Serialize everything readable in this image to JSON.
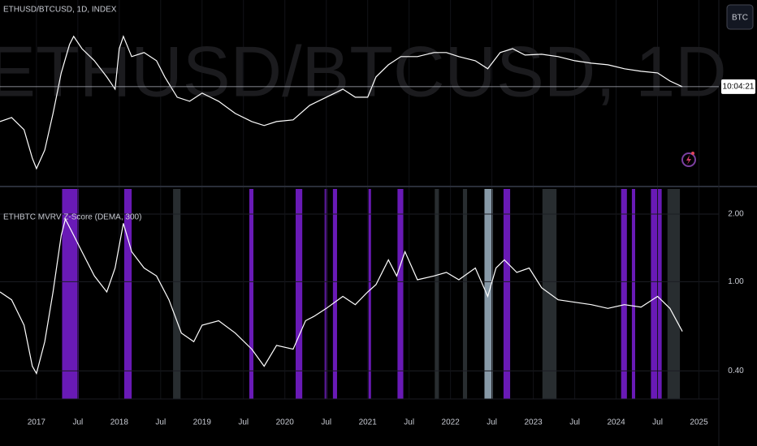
{
  "header": {
    "button": "BTC"
  },
  "chart_data": [
    {
      "type": "line",
      "title": "ETHUSD/BTCUSD, 1D, INDEX",
      "watermark": "ETHUSD/BTCUSD, 1D",
      "price_label": "10:04:21",
      "log_scale": true,
      "color": "#ffffff",
      "xlim": [
        2016.56,
        2025.24
      ],
      "ylim": [
        0.0062,
        0.33
      ],
      "x": [
        2016.56,
        2016.7,
        2016.85,
        2016.95,
        2017.0,
        2017.1,
        2017.2,
        2017.3,
        2017.4,
        2017.45,
        2017.55,
        2017.7,
        2017.85,
        2017.95,
        2018.0,
        2018.05,
        2018.15,
        2018.3,
        2018.45,
        2018.55,
        2018.7,
        2018.85,
        2019.0,
        2019.2,
        2019.4,
        2019.6,
        2019.75,
        2019.9,
        2020.1,
        2020.3,
        2020.5,
        2020.7,
        2020.85,
        2021.0,
        2021.1,
        2021.25,
        2021.4,
        2021.6,
        2021.8,
        2021.95,
        2022.1,
        2022.3,
        2022.45,
        2022.6,
        2022.75,
        2022.9,
        2023.1,
        2023.3,
        2023.5,
        2023.7,
        2023.9,
        2024.1,
        2024.3,
        2024.5,
        2024.65,
        2024.8
      ],
      "values": [
        0.0242,
        0.0264,
        0.0203,
        0.011,
        0.0088,
        0.0131,
        0.0288,
        0.0689,
        0.1268,
        0.151,
        0.116,
        0.0895,
        0.0631,
        0.0486,
        0.116,
        0.151,
        0.0977,
        0.1066,
        0.0895,
        0.0631,
        0.0408,
        0.0374,
        0.0446,
        0.0374,
        0.0288,
        0.0242,
        0.0222,
        0.0242,
        0.0251,
        0.0343,
        0.0408,
        0.0486,
        0.0408,
        0.0408,
        0.0631,
        0.082,
        0.0977,
        0.0977,
        0.1066,
        0.1066,
        0.0977,
        0.0895,
        0.0752,
        0.1066,
        0.116,
        0.1011,
        0.1028,
        0.0977,
        0.0895,
        0.0849,
        0.082,
        0.0752,
        0.0713,
        0.0689,
        0.0578,
        0.0512
      ]
    },
    {
      "type": "line",
      "title": "ETHBTC MVRV Z-Score (DEMA, 300)",
      "log_scale": true,
      "grid": true,
      "color": "#ffffff",
      "xlim": [
        2016.56,
        2025.24
      ],
      "ylim": [
        0.3,
        2.59
      ],
      "yticks": [
        {
          "value": 0.4,
          "label": "0.40"
        },
        {
          "value": 1,
          "label": "1.00"
        },
        {
          "value": 2,
          "label": "2.00"
        }
      ],
      "xticks": [
        2017,
        {
          "value": 2017.5,
          "label": "Jul"
        },
        2018,
        {
          "value": 2018.5,
          "label": "Jul"
        },
        2019,
        {
          "value": 2019.5,
          "label": "Jul"
        },
        2020,
        {
          "value": 2020.5,
          "label": "Jul"
        },
        2021,
        {
          "value": 2021.5,
          "label": "Jul"
        },
        2022,
        {
          "value": 2022.5,
          "label": "Jul"
        },
        2023,
        {
          "value": 2023.5,
          "label": "Jul"
        },
        2024,
        {
          "value": 2024.5,
          "label": "Jul"
        },
        2025
      ],
      "x": [
        2016.56,
        2016.7,
        2016.85,
        2016.95,
        2017.0,
        2017.1,
        2017.2,
        2017.3,
        2017.35,
        2017.45,
        2017.55,
        2017.7,
        2017.85,
        2017.95,
        2018.05,
        2018.15,
        2018.3,
        2018.45,
        2018.6,
        2018.75,
        2018.9,
        2019.0,
        2019.2,
        2019.4,
        2019.6,
        2019.75,
        2019.9,
        2020.1,
        2020.25,
        2020.35,
        2020.5,
        2020.7,
        2020.85,
        2021.0,
        2021.1,
        2021.25,
        2021.35,
        2021.45,
        2021.6,
        2021.8,
        2021.95,
        2022.1,
        2022.3,
        2022.45,
        2022.55,
        2022.65,
        2022.8,
        2022.95,
        2023.1,
        2023.3,
        2023.5,
        2023.7,
        2023.9,
        2024.1,
        2024.3,
        2024.5,
        2024.65,
        2024.8
      ],
      "values": [
        0.9,
        0.83,
        0.64,
        0.42,
        0.39,
        0.54,
        0.9,
        1.61,
        1.9,
        1.61,
        1.36,
        1.06,
        0.9,
        1.15,
        1.82,
        1.36,
        1.15,
        1.06,
        0.83,
        0.59,
        0.54,
        0.64,
        0.67,
        0.59,
        0.5,
        0.42,
        0.52,
        0.5,
        0.67,
        0.7,
        0.76,
        0.86,
        0.79,
        0.9,
        0.97,
        1.25,
        1.06,
        1.36,
        1.02,
        1.06,
        1.1,
        1.02,
        1.15,
        0.86,
        1.15,
        1.25,
        1.1,
        1.15,
        0.94,
        0.83,
        0.81,
        0.79,
        0.76,
        0.79,
        0.77,
        0.86,
        0.76,
        0.6
      ],
      "bands": [
        {
          "start": 2017.31,
          "end": 2017.51,
          "color": "#7b1fd6"
        },
        {
          "start": 2018.06,
          "end": 2018.15,
          "color": "#7b1fd6"
        },
        {
          "start": 2018.65,
          "end": 2018.74,
          "color": "#2f3538"
        },
        {
          "start": 2019.57,
          "end": 2019.62,
          "color": "#7b1fd6"
        },
        {
          "start": 2020.13,
          "end": 2020.21,
          "color": "#7b1fd6"
        },
        {
          "start": 2020.48,
          "end": 2020.51,
          "color": "#7b1fd6"
        },
        {
          "start": 2020.58,
          "end": 2020.63,
          "color": "#7b1fd6"
        },
        {
          "start": 2021.01,
          "end": 2021.04,
          "color": "#7b1fd6"
        },
        {
          "start": 2021.36,
          "end": 2021.43,
          "color": "#7b1fd6"
        },
        {
          "start": 2021.81,
          "end": 2021.86,
          "color": "#2f3538"
        },
        {
          "start": 2022.15,
          "end": 2022.2,
          "color": "#2f3538"
        },
        {
          "start": 2022.41,
          "end": 2022.51,
          "color": "#9fb4c4"
        },
        {
          "start": 2022.64,
          "end": 2022.72,
          "color": "#7b1fd6"
        },
        {
          "start": 2023.11,
          "end": 2023.28,
          "color": "#2f3538"
        },
        {
          "start": 2024.06,
          "end": 2024.13,
          "color": "#7b1fd6"
        },
        {
          "start": 2024.19,
          "end": 2024.23,
          "color": "#7b1fd6"
        },
        {
          "start": 2024.42,
          "end": 2024.55,
          "color": "#7b1fd6"
        },
        {
          "start": 2024.62,
          "end": 2024.77,
          "color": "#2f3538"
        }
      ]
    }
  ]
}
